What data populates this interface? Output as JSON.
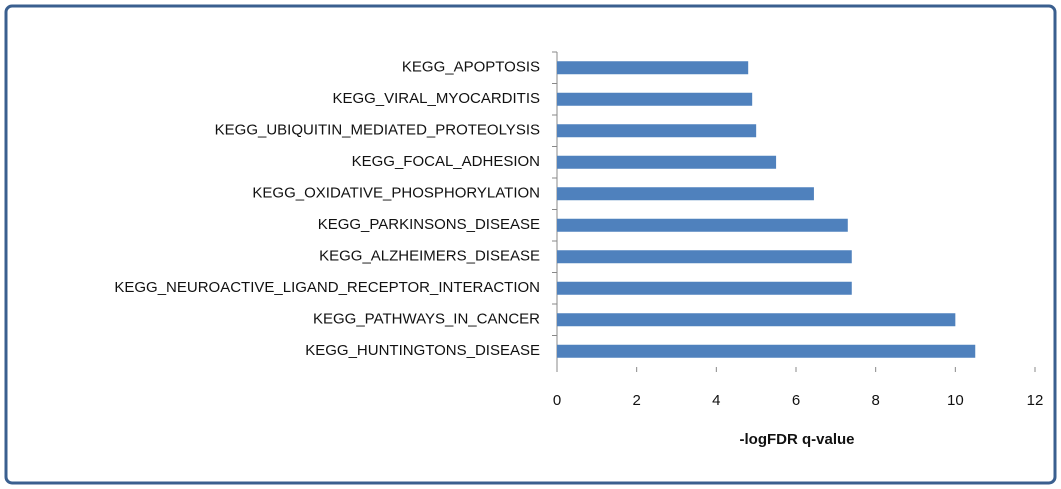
{
  "chart_data": {
    "type": "barh",
    "categories": [
      "KEGG_APOPTOSIS",
      "KEGG_VIRAL_MYOCARDITIS",
      "KEGG_UBIQUITIN_MEDIATED_PROTEOLYSIS",
      "KEGG_FOCAL_ADHESION",
      "KEGG_OXIDATIVE_PHOSPHORYLATION",
      "KEGG_PARKINSONS_DISEASE",
      "KEGG_ALZHEIMERS_DISEASE",
      "KEGG_NEUROACTIVE_LIGAND_RECEPTOR_INTERACTION",
      "KEGG_PATHWAYS_IN_CANCER",
      "KEGG_HUNTINGTONS_DISEASE"
    ],
    "values": [
      4.8,
      4.9,
      5.0,
      5.5,
      6.45,
      7.3,
      7.4,
      7.4,
      10.0,
      10.5
    ],
    "color": "#4f81bd",
    "x_label": "-logFDR q-value",
    "xlim": [
      0,
      12
    ],
    "xticks": [
      0,
      2,
      4,
      6,
      8,
      10,
      12
    ]
  }
}
